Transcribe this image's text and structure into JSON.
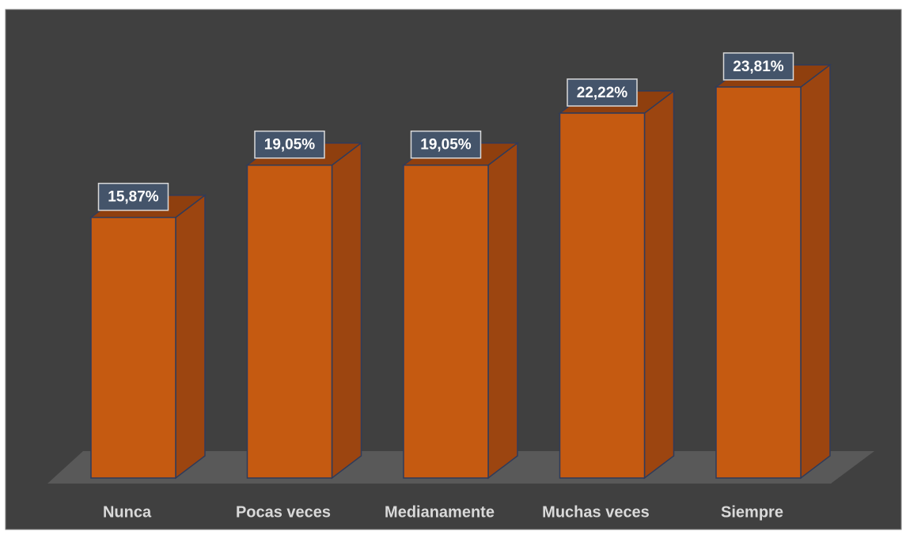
{
  "chart_data": {
    "type": "bar3d",
    "categories": [
      "Nunca",
      "Pocas veces",
      "Medianamente",
      "Muchas veces",
      "Siempre"
    ],
    "values": [
      15.87,
      19.05,
      19.05,
      22.22,
      23.81
    ],
    "value_labels": [
      "15,87%",
      "19,05%",
      "19,05%",
      "22,22%",
      "23,81%"
    ],
    "color": "#c55a11"
  }
}
